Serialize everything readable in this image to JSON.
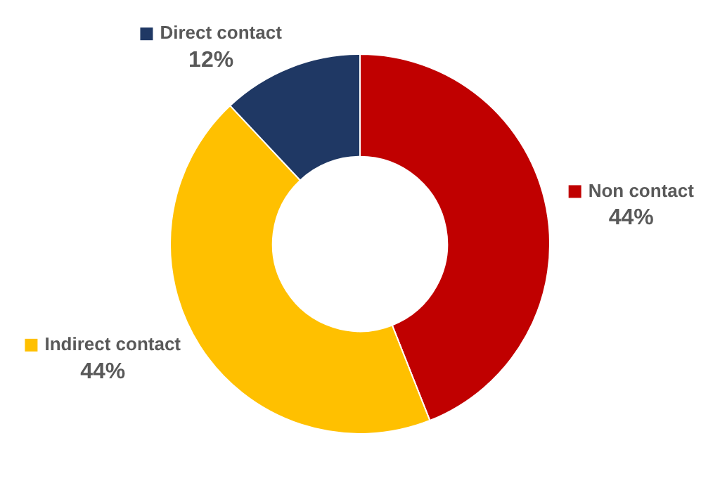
{
  "chart_data": {
    "type": "donut",
    "categories": [
      "Non contact",
      "Indirect contact",
      "Direct contact"
    ],
    "values": [
      44,
      44,
      12
    ],
    "value_labels": [
      "44%",
      "44%",
      "12%"
    ],
    "colors": [
      "#c00000",
      "#ffc000",
      "#1f3864"
    ],
    "legend": "right"
  }
}
